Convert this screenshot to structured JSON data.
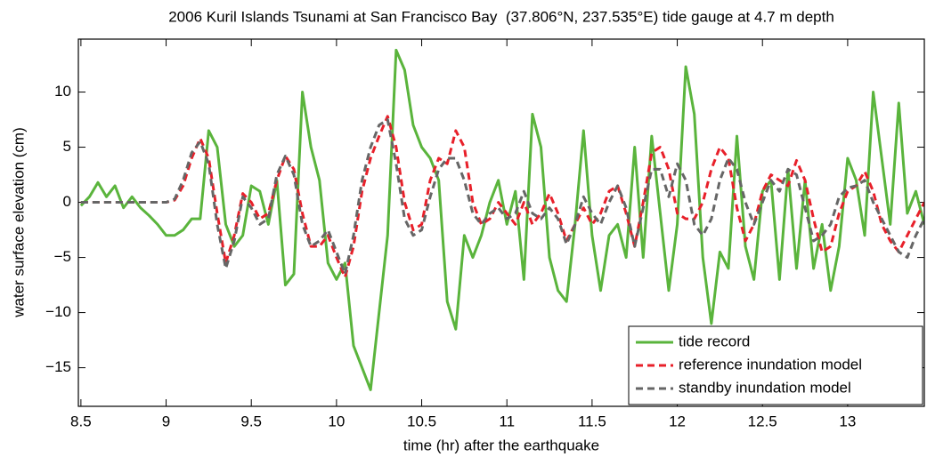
{
  "chart_data": {
    "type": "line",
    "title": "2006 Kuril Islands Tsunami at San Francisco Bay  (37.806°N, 237.535°E) tide gauge at 4.7 m depth",
    "x_label": "time (hr) after the earthquake",
    "y_label": "water surface elevation (cm)",
    "xlim": [
      8.485,
      13.45
    ],
    "ylim": [
      -18.5,
      14.8
    ],
    "xticks": [
      8.5,
      9,
      9.5,
      10,
      10.5,
      11,
      11.5,
      12,
      12.5,
      13
    ],
    "yticks": [
      {
        "value": -15,
        "label": "−15"
      },
      {
        "value": -10,
        "label": "−10"
      },
      {
        "value": -5,
        "label": "−5"
      },
      0,
      5,
      10
    ],
    "legend": "lower right",
    "x": [
      8.5,
      8.55,
      8.6,
      8.65,
      8.7,
      8.75,
      8.8,
      8.85,
      8.9,
      8.95,
      9,
      9.05,
      9.1,
      9.15,
      9.2,
      9.25,
      9.3,
      9.35,
      9.4,
      9.45,
      9.5,
      9.55,
      9.6,
      9.65,
      9.7,
      9.75,
      9.8,
      9.85,
      9.9,
      9.95,
      10,
      10.05,
      10.1,
      10.15,
      10.2,
      10.25,
      10.3,
      10.35,
      10.4,
      10.45,
      10.5,
      10.55,
      10.6,
      10.65,
      10.7,
      10.75,
      10.8,
      10.85,
      10.9,
      10.95,
      11,
      11.05,
      11.1,
      11.15,
      11.2,
      11.25,
      11.3,
      11.35,
      11.4,
      11.45,
      11.5,
      11.55,
      11.6,
      11.65,
      11.7,
      11.75,
      11.8,
      11.85,
      11.9,
      11.95,
      12,
      12.05,
      12.1,
      12.15,
      12.2,
      12.25,
      12.3,
      12.35,
      12.4,
      12.45,
      12.5,
      12.55,
      12.6,
      12.65,
      12.7,
      12.75,
      12.8,
      12.85,
      12.9,
      12.95,
      13,
      13.05,
      13.1,
      13.15,
      13.2,
      13.25,
      13.3,
      13.35,
      13.4,
      13.45
    ],
    "series": [
      {
        "name": "tide record",
        "color": "#5ab43c",
        "dash": "solid",
        "values": [
          -0.3,
          0.5,
          1.8,
          0.5,
          1.5,
          -0.5,
          0.5,
          -0.5,
          -1.2,
          -2,
          -3,
          -3,
          -2.5,
          -1.5,
          -1.5,
          6.5,
          5,
          -2,
          -4,
          -3,
          1.5,
          1,
          -2,
          2,
          -7.5,
          -6.5,
          10,
          5,
          2,
          -5.5,
          -7,
          -5.5,
          -13,
          -15,
          -17,
          -10,
          -3,
          13.8,
          12,
          7,
          5,
          4,
          2,
          -9,
          -11.5,
          -3,
          -5,
          -3,
          0,
          2,
          -2,
          1,
          -7,
          8,
          5,
          -5,
          -8,
          -9,
          -2,
          6.5,
          -3,
          -8,
          -3,
          -2,
          -5,
          5,
          -5,
          6,
          -1,
          -8,
          -2,
          12.3,
          8,
          -5,
          -11,
          -4.5,
          -6,
          6,
          -4,
          -7,
          1,
          2,
          -7,
          3,
          -6,
          2,
          -6,
          -2,
          -8,
          -4,
          4,
          2,
          -3,
          10,
          4,
          -2,
          9,
          -1,
          1,
          -2
        ]
      },
      {
        "name": "reference inundation model",
        "color": "#e8202a",
        "dash": "dashed",
        "values": [
          0,
          0,
          0,
          0,
          0,
          0,
          0,
          0,
          0,
          0,
          0,
          0.2,
          1.5,
          4,
          5.8,
          4,
          -1,
          -5.5,
          -3,
          0.8,
          0,
          -1.5,
          -1,
          2,
          4.2,
          3,
          -1,
          -4,
          -4,
          -3,
          -5,
          -6.8,
          -4,
          1,
          4,
          6,
          7.8,
          5,
          0,
          -2.5,
          -2,
          2,
          4,
          3.5,
          6.5,
          5,
          0,
          -2,
          -1.5,
          0,
          -1,
          -2,
          0,
          -2,
          -1,
          0.8,
          -1,
          -3.5,
          -2,
          -0.5,
          -2,
          -1,
          1,
          1.5,
          -1,
          -4,
          0,
          4.5,
          5,
          3,
          -1,
          -1.5,
          -1.5,
          0,
          3,
          5,
          4,
          -0.5,
          -3.5,
          -2,
          1,
          2.5,
          2,
          1.5,
          3.8,
          2,
          -1.5,
          -4.5,
          -4,
          -1,
          1,
          1.5,
          2.8,
          1,
          -2,
          -3.5,
          -4.5,
          -3,
          -1.5,
          0
        ]
      },
      {
        "name": "standby inundation model",
        "color": "#666666",
        "dash": "dashed",
        "values": [
          0,
          0,
          0,
          0,
          0,
          0,
          0,
          0,
          0,
          0,
          0,
          0.3,
          2,
          4.5,
          5.5,
          3.5,
          -2,
          -6,
          -3.5,
          0.5,
          -0.5,
          -2,
          -1.5,
          2.5,
          4.2,
          2.5,
          -2,
          -4,
          -3.5,
          -2.5,
          -4.5,
          -6.5,
          -3,
          2,
          5,
          7,
          7.5,
          3.5,
          -1.5,
          -3,
          -2.5,
          0.5,
          3,
          4,
          4,
          2,
          -1,
          -2,
          -1,
          -0.5,
          -1.5,
          -1,
          1,
          -1,
          -1.5,
          -0.5,
          -1.5,
          -3.8,
          -2,
          0.5,
          -1,
          -2,
          0,
          1.5,
          -0.5,
          -4,
          -0.5,
          3,
          3,
          0.5,
          3.5,
          2,
          -2,
          -3,
          -1.5,
          2,
          4,
          3,
          0,
          -2,
          0,
          2,
          1,
          3,
          2.5,
          -0.5,
          -3.5,
          -3,
          -2,
          0.5,
          1.3,
          1.5,
          2,
          0,
          -1.5,
          -3,
          -4.5,
          -5,
          -3,
          -1.5
        ]
      }
    ]
  }
}
